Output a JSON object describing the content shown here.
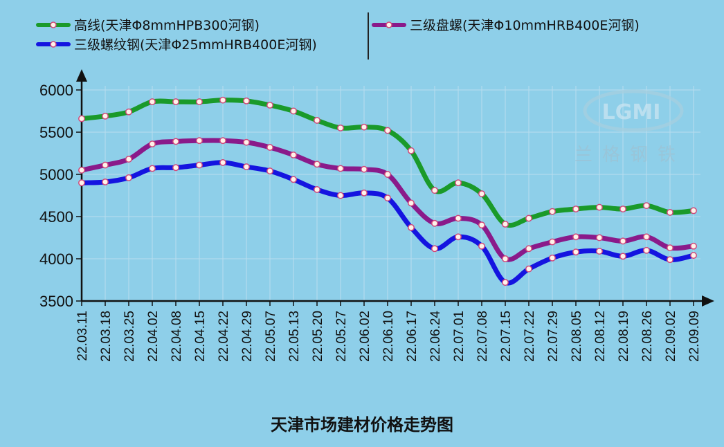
{
  "chart_data": {
    "type": "line",
    "title": "天津市场建材价格走势图",
    "watermark": "LGMI",
    "watermark_sub": "兰格钢铁",
    "x": [
      "22.03.11",
      "22.03.18",
      "22.03.25",
      "22.04.02",
      "22.04.08",
      "22.04.15",
      "22.04.22",
      "22.04.29",
      "22.05.07",
      "22.05.13",
      "22.05.20",
      "22.05.27",
      "22.06.02",
      "22.06.10",
      "22.06.17",
      "22.06.24",
      "22.07.01",
      "22.07.08",
      "22.07.15",
      "22.07.22",
      "22.07.29",
      "22.08.05",
      "22.08.12",
      "22.08.19",
      "22.08.26",
      "22.09.02",
      "22.09.09"
    ],
    "yticks": [
      3500,
      4000,
      4500,
      5000,
      5500,
      6000
    ],
    "ylim": [
      3500,
      6000
    ],
    "grid": true,
    "legend_position": "top",
    "series": [
      {
        "name": "高线(天津Φ8mmHPB300河钢)",
        "color": "#1a9a2a",
        "values": [
          5660,
          5690,
          5740,
          5860,
          5860,
          5860,
          5880,
          5870,
          5820,
          5750,
          5640,
          5550,
          5560,
          5520,
          5280,
          4810,
          4900,
          4770,
          4410,
          4480,
          4560,
          4590,
          4610,
          4590,
          4630,
          4550,
          4570
        ]
      },
      {
        "name": "三级盘螺(天津Φ10mmHRB400E河钢)",
        "color": "#8a1a8a",
        "values": [
          5050,
          5110,
          5180,
          5360,
          5390,
          5400,
          5400,
          5380,
          5320,
          5230,
          5120,
          5070,
          5060,
          5000,
          4660,
          4420,
          4480,
          4400,
          4000,
          4120,
          4200,
          4260,
          4250,
          4210,
          4260,
          4130,
          4150
        ]
      },
      {
        "name": "三级螺纹钢(天津Φ25mmHRB400E河钢)",
        "color": "#1414e0",
        "values": [
          4900,
          4910,
          4960,
          5070,
          5080,
          5110,
          5140,
          5090,
          5040,
          4940,
          4820,
          4750,
          4780,
          4720,
          4370,
          4120,
          4260,
          4150,
          3720,
          3880,
          4010,
          4080,
          4090,
          4030,
          4100,
          3990,
          4040
        ]
      }
    ]
  }
}
